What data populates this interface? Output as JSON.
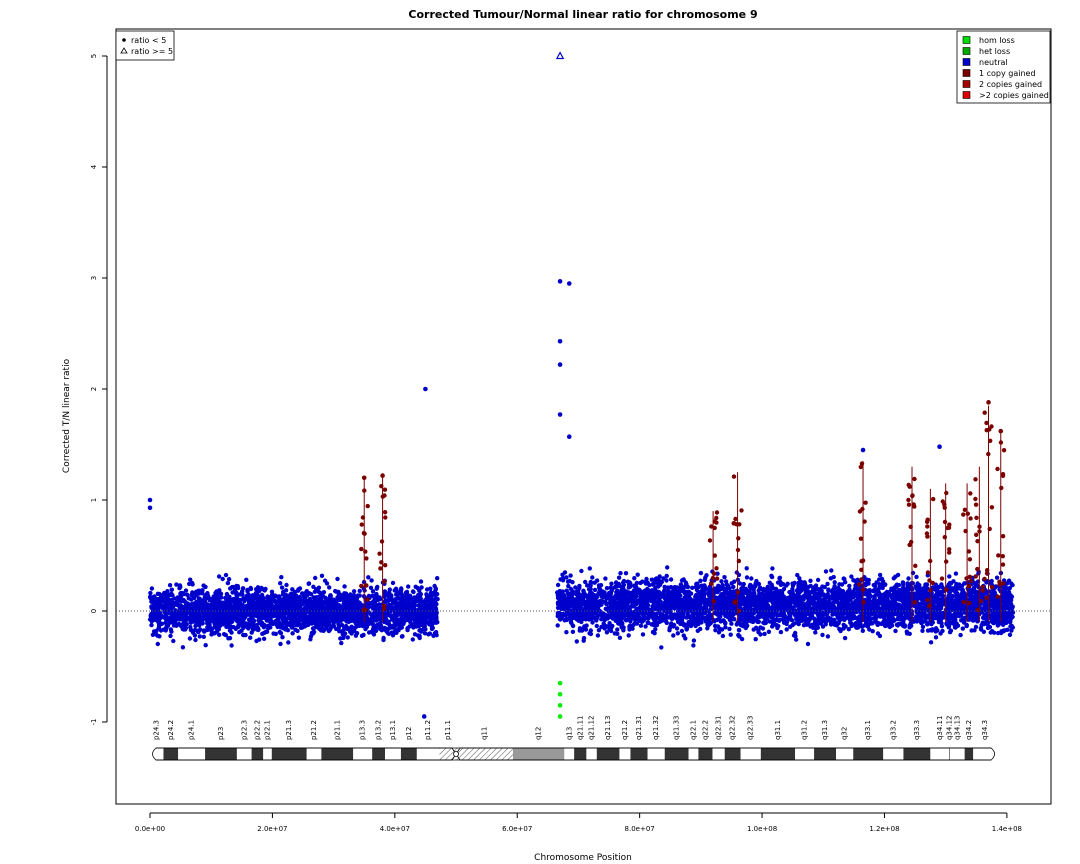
{
  "chart_data": {
    "type": "scatter",
    "title": "Corrected Tumour/Normal linear ratio for chromosome  9",
    "xlabel": "Chromosome Position",
    "ylabel": "Corrected T/N linear ratio",
    "xlim": [
      -5000000,
      146000000
    ],
    "ylim": [
      -1.8,
      5.5
    ],
    "x_ticks": [
      0,
      20000000,
      40000000,
      60000000,
      80000000,
      100000000,
      120000000,
      140000000
    ],
    "x_tick_labels": [
      "0.0e+00",
      "2.0e+07",
      "4.0e+07",
      "6.0e+07",
      "8.0e+07",
      "1.0e+08",
      "1.2e+08",
      "1.4e+08"
    ],
    "y_ticks": [
      -1,
      0,
      1,
      2,
      3,
      4,
      5
    ],
    "y_tick_labels": [
      "-1",
      "0",
      "1",
      "2",
      "3",
      "4",
      "5"
    ],
    "reference_line_y": 0,
    "legend_shape": {
      "placement": "top-left",
      "entries": [
        {
          "label": "ratio < 5",
          "marker": "filled-circle"
        },
        {
          "label": "ratio >= 5",
          "marker": "open-triangle"
        }
      ]
    },
    "legend_status": {
      "placement": "top-right",
      "entries": [
        {
          "label": "hom loss",
          "color": "#00dd00"
        },
        {
          "label": "het loss",
          "color": "#00aa00"
        },
        {
          "label": "neutral",
          "color": "#0000cc"
        },
        {
          "label": "1 copy gained",
          "color": "#7a0000"
        },
        {
          "label": "2 copies gained",
          "color": "#aa0000"
        },
        {
          "label": ">2 copies gained",
          "color": "#dd0000"
        }
      ]
    },
    "colors": {
      "neutral": "#0000cc",
      "gain": "#7a0000",
      "loss": "#00ee00",
      "outlier": "#0000cc"
    },
    "regions": [
      {
        "status": "neutral",
        "x_start": 0,
        "x_end": 47000000,
        "y_center": 0.0,
        "y_spread": 0.4
      },
      {
        "status": "neutral",
        "x_start": 66500000,
        "x_end": 141000000,
        "y_center": 0.05,
        "y_spread": 0.42
      }
    ],
    "notable_points": [
      {
        "x": 45000000,
        "y": 2.0,
        "status": "neutral"
      },
      {
        "x": 67000000,
        "y": 5.0,
        "status": "neutral",
        "marker": "open-triangle"
      },
      {
        "x": 67000000,
        "y": 2.97,
        "status": "neutral"
      },
      {
        "x": 68500000,
        "y": 2.95,
        "status": "neutral"
      },
      {
        "x": 67000000,
        "y": 2.43,
        "status": "neutral"
      },
      {
        "x": 67000000,
        "y": 2.22,
        "status": "neutral"
      },
      {
        "x": 67000000,
        "y": 1.77,
        "status": "neutral"
      },
      {
        "x": 68500000,
        "y": 1.57,
        "status": "neutral"
      },
      {
        "x": 0,
        "y": 1.0,
        "status": "neutral"
      },
      {
        "x": 0,
        "y": 0.93,
        "status": "neutral"
      },
      {
        "x": 44800000,
        "y": -0.95,
        "status": "neutral"
      },
      {
        "x": 67000000,
        "y": -0.65,
        "status": "loss"
      },
      {
        "x": 67000000,
        "y": -0.75,
        "status": "loss"
      },
      {
        "x": 67000000,
        "y": -0.85,
        "status": "loss"
      },
      {
        "x": 67000000,
        "y": -0.95,
        "status": "loss"
      },
      {
        "x": 137000000,
        "y": 1.88,
        "status": "gain"
      },
      {
        "x": 139000000,
        "y": 1.62,
        "status": "gain"
      },
      {
        "x": 116500000,
        "y": 1.45,
        "status": "neutral"
      },
      {
        "x": 129000000,
        "y": 1.48,
        "status": "neutral"
      },
      {
        "x": 35000000,
        "y": 1.2,
        "status": "gain"
      },
      {
        "x": 38000000,
        "y": 1.22,
        "status": "gain"
      }
    ],
    "gain_spikes": [
      {
        "x": 35000000,
        "y_top": 1.2
      },
      {
        "x": 38000000,
        "y_top": 1.22
      },
      {
        "x": 92000000,
        "y_top": 0.9
      },
      {
        "x": 96000000,
        "y_top": 1.25
      },
      {
        "x": 116500000,
        "y_top": 1.35
      },
      {
        "x": 124500000,
        "y_top": 1.3
      },
      {
        "x": 127500000,
        "y_top": 1.1
      },
      {
        "x": 130000000,
        "y_top": 1.15
      },
      {
        "x": 133500000,
        "y_top": 1.15
      },
      {
        "x": 135500000,
        "y_top": 1.3
      },
      {
        "x": 137000000,
        "y_top": 1.85
      },
      {
        "x": 139000000,
        "y_top": 1.6
      }
    ],
    "ideogram": {
      "centromere_x": 50000000,
      "bands": [
        {
          "name": "p24.3",
          "start": 0,
          "end": 2200000,
          "stain": "white"
        },
        {
          "name": "p24.2",
          "start": 2200000,
          "end": 4600000,
          "stain": "black"
        },
        {
          "name": "p24.1",
          "start": 4600000,
          "end": 9000000,
          "stain": "white"
        },
        {
          "name": "p23",
          "start": 9000000,
          "end": 14200000,
          "stain": "black"
        },
        {
          "name": "p22.3",
          "start": 14200000,
          "end": 16600000,
          "stain": "white"
        },
        {
          "name": "p22.2",
          "start": 16600000,
          "end": 18500000,
          "stain": "black"
        },
        {
          "name": "p22.1",
          "start": 18500000,
          "end": 19900000,
          "stain": "white"
        },
        {
          "name": "p21.3",
          "start": 19900000,
          "end": 25600000,
          "stain": "black"
        },
        {
          "name": "p21.2",
          "start": 25600000,
          "end": 28000000,
          "stain": "white"
        },
        {
          "name": "p21.1",
          "start": 28000000,
          "end": 33200000,
          "stain": "black"
        },
        {
          "name": "p13.3",
          "start": 33200000,
          "end": 36300000,
          "stain": "white"
        },
        {
          "name": "p13.2",
          "start": 36300000,
          "end": 38400000,
          "stain": "black"
        },
        {
          "name": "p13.1",
          "start": 38400000,
          "end": 41000000,
          "stain": "white"
        },
        {
          "name": "p12",
          "start": 41000000,
          "end": 43600000,
          "stain": "black"
        },
        {
          "name": "p11.2",
          "start": 43600000,
          "end": 47300000,
          "stain": "white"
        },
        {
          "name": "p11.1",
          "start": 47300000,
          "end": 50000000,
          "stain": "hatched"
        },
        {
          "name": "q11",
          "start": 50000000,
          "end": 59300000,
          "stain": "hatched"
        },
        {
          "name": "q12",
          "start": 59300000,
          "end": 67700000,
          "stain": "gray"
        },
        {
          "name": "q13",
          "start": 67700000,
          "end": 69300000,
          "stain": "white"
        },
        {
          "name": "q21.11",
          "start": 69300000,
          "end": 71300000,
          "stain": "black"
        },
        {
          "name": "q21.12",
          "start": 71300000,
          "end": 73000000,
          "stain": "white"
        },
        {
          "name": "q21.13",
          "start": 73000000,
          "end": 76700000,
          "stain": "black"
        },
        {
          "name": "q21.2",
          "start": 76700000,
          "end": 78500000,
          "stain": "white"
        },
        {
          "name": "q21.31",
          "start": 78500000,
          "end": 81300000,
          "stain": "black"
        },
        {
          "name": "q21.32",
          "start": 81300000,
          "end": 84100000,
          "stain": "white"
        },
        {
          "name": "q21.33",
          "start": 84100000,
          "end": 88000000,
          "stain": "black"
        },
        {
          "name": "q22.1",
          "start": 88000000,
          "end": 89600000,
          "stain": "white"
        },
        {
          "name": "q22.2",
          "start": 89600000,
          "end": 91900000,
          "stain": "black"
        },
        {
          "name": "q22.31",
          "start": 91900000,
          "end": 93900000,
          "stain": "white"
        },
        {
          "name": "q22.32",
          "start": 93900000,
          "end": 96500000,
          "stain": "black"
        },
        {
          "name": "q22.33",
          "start": 96500000,
          "end": 99800000,
          "stain": "white"
        },
        {
          "name": "q31.1",
          "start": 99800000,
          "end": 105400000,
          "stain": "black"
        },
        {
          "name": "q31.2",
          "start": 105400000,
          "end": 108500000,
          "stain": "white"
        },
        {
          "name": "q31.3",
          "start": 108500000,
          "end": 112100000,
          "stain": "black"
        },
        {
          "name": "q32",
          "start": 112100000,
          "end": 114900000,
          "stain": "white"
        },
        {
          "name": "q33.1",
          "start": 114900000,
          "end": 119800000,
          "stain": "black"
        },
        {
          "name": "q33.2",
          "start": 119800000,
          "end": 123100000,
          "stain": "white"
        },
        {
          "name": "q33.3",
          "start": 123100000,
          "end": 127500000,
          "stain": "black"
        },
        {
          "name": "q34.11",
          "start": 127500000,
          "end": 130600000,
          "stain": "white"
        },
        {
          "name": "q34.12",
          "start": 130600000,
          "end": 130700000,
          "stain": "black"
        },
        {
          "name": "q34.13",
          "start": 130700000,
          "end": 133100000,
          "stain": "white"
        },
        {
          "name": "q34.2",
          "start": 133100000,
          "end": 134500000,
          "stain": "black"
        },
        {
          "name": "q34.3",
          "start": 134500000,
          "end": 138400000,
          "stain": "white"
        }
      ]
    }
  }
}
